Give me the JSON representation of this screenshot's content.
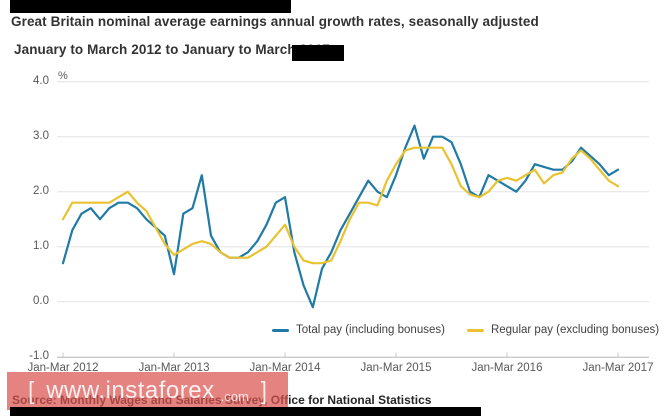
{
  "header": {
    "title_line1": "Great Britain nominal average earnings annual growth rates, seasonally adjusted",
    "title_line2": "January to March 2012 to January to March 2017"
  },
  "axis": {
    "unit_label": "%"
  },
  "legend": {
    "total_pay": "Total pay (including bonuses)",
    "regular_pay": "Regular pay (excluding bonuses)"
  },
  "source": {
    "text": "Source: Monthly Wages and Salaries Survey, Office for National Statistics"
  },
  "watermark": {
    "bracket_left": "[",
    "site": "www.instaforex",
    "domain": ".com",
    "bracket_right": "]"
  },
  "colors": {
    "total_pay_line": "#1f7aa6",
    "regular_pay_line": "#e9c230",
    "gridline": "#e3e3e3",
    "axis_line": "#c9c9c9",
    "watermark_banner": "#d9534f",
    "title_text": "#333333",
    "axis_text": "#595959"
  },
  "chart_data": {
    "type": "line",
    "title": "Great Britain nominal average earnings annual growth rates, seasonally adjusted, January to March 2012 to January to March 2017",
    "xlabel": "",
    "ylabel": "%",
    "ylim": [
      -1.0,
      4.0
    ],
    "grid": "horizontal",
    "legend_position": "bottom-right",
    "x_note": "monthly rolling 3-month periods, 61 points from Jan-Mar 2012 to Jan-Mar 2017",
    "y_ticks": [
      {
        "label": "4.0",
        "value": 4.0
      },
      {
        "label": "3.0",
        "value": 3.0
      },
      {
        "label": "2.0",
        "value": 2.0
      },
      {
        "label": "1.0",
        "value": 1.0
      },
      {
        "label": "0.0",
        "value": 0.0
      },
      {
        "label": "-1.0",
        "value": -1.0
      }
    ],
    "x_ticks": [
      {
        "label": "Jan-Mar 2012",
        "index": 0
      },
      {
        "label": "Jan-Mar 2013",
        "index": 12
      },
      {
        "label": "Jan-Mar 2014",
        "index": 24
      },
      {
        "label": "Jan-Mar 2015",
        "index": 36
      },
      {
        "label": "Jan-Mar 2016",
        "index": 48
      },
      {
        "label": "Jan-Mar 2017",
        "index": 60
      }
    ],
    "series": [
      {
        "name": "Total pay (including bonuses)",
        "color": "#1f7aa6",
        "values": [
          0.7,
          1.3,
          1.6,
          1.7,
          1.5,
          1.7,
          1.8,
          1.8,
          1.7,
          1.5,
          1.35,
          1.2,
          0.5,
          1.6,
          1.7,
          2.3,
          1.2,
          0.9,
          0.8,
          0.8,
          0.9,
          1.1,
          1.4,
          1.8,
          1.9,
          0.9,
          0.3,
          -0.1,
          0.6,
          0.9,
          1.3,
          1.6,
          1.9,
          2.2,
          2.0,
          1.9,
          2.3,
          2.8,
          3.2,
          2.6,
          3.0,
          3.0,
          2.9,
          2.5,
          2.0,
          1.9,
          2.3,
          2.2,
          2.1,
          2.0,
          2.2,
          2.5,
          2.45,
          2.4,
          2.4,
          2.55,
          2.8,
          2.65,
          2.5,
          2.3,
          2.4
        ]
      },
      {
        "name": "Regular pay (excluding bonuses)",
        "color": "#e9c230",
        "values": [
          1.5,
          1.8,
          1.8,
          1.8,
          1.8,
          1.8,
          1.9,
          2.0,
          1.8,
          1.65,
          1.35,
          1.05,
          0.85,
          0.95,
          1.05,
          1.1,
          1.05,
          0.9,
          0.8,
          0.8,
          0.8,
          0.9,
          1.0,
          1.2,
          1.4,
          1.0,
          0.75,
          0.7,
          0.7,
          0.75,
          1.1,
          1.5,
          1.8,
          1.8,
          1.75,
          2.2,
          2.5,
          2.75,
          2.8,
          2.8,
          2.8,
          2.8,
          2.5,
          2.1,
          1.95,
          1.9,
          2.0,
          2.2,
          2.25,
          2.2,
          2.3,
          2.4,
          2.15,
          2.3,
          2.35,
          2.6,
          2.75,
          2.6,
          2.4,
          2.2,
          2.1
        ]
      }
    ]
  }
}
